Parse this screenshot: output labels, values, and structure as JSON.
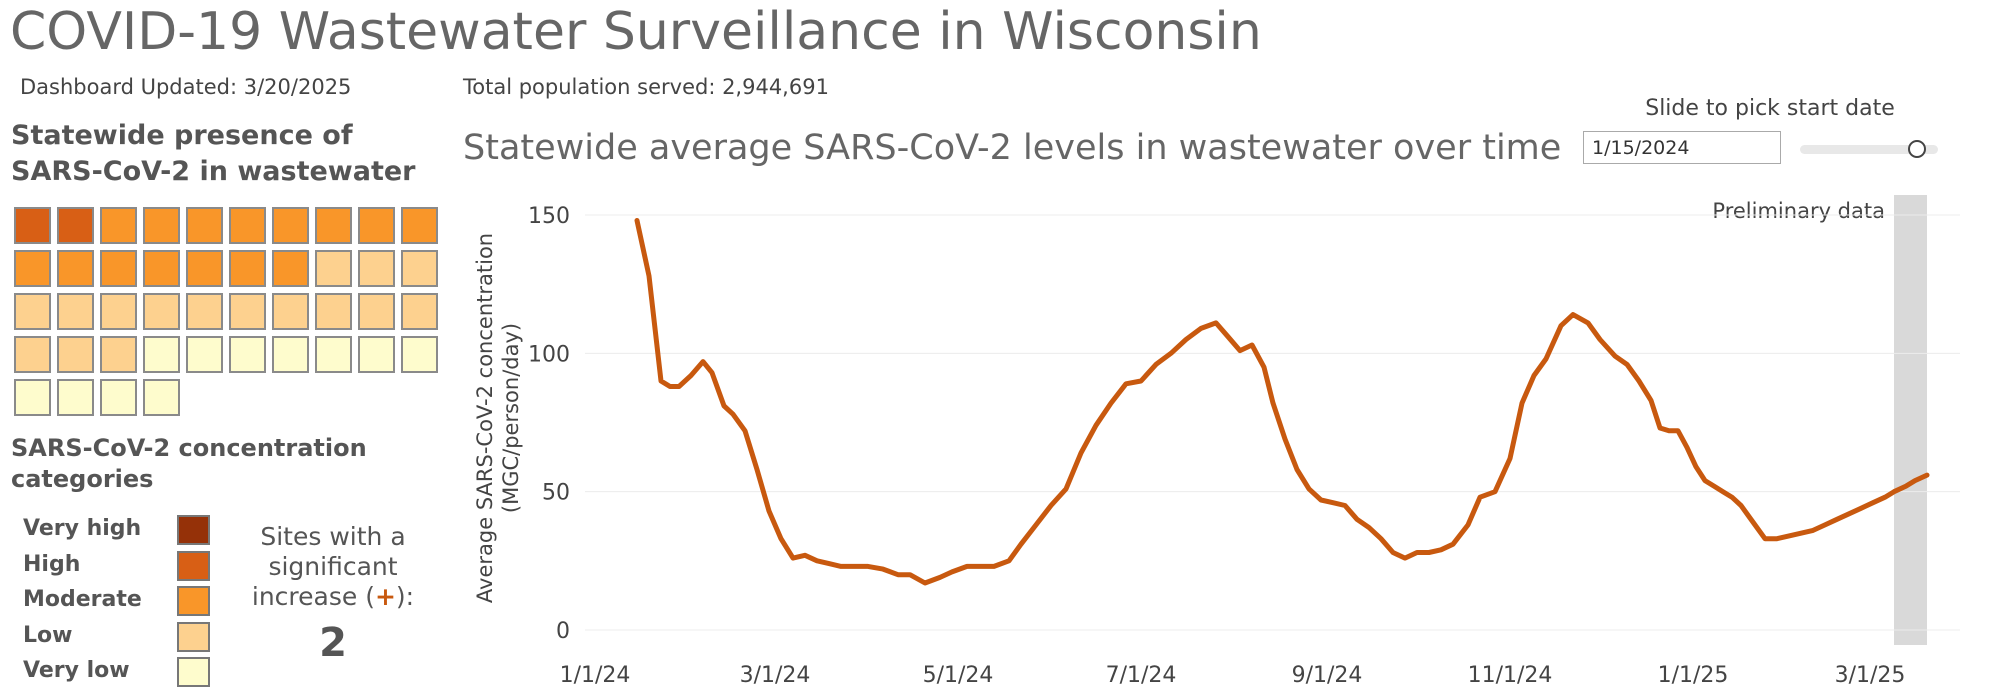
{
  "header": {
    "title": "COVID-19 Wastewater Surveillance in Wisconsin",
    "updated": "Dashboard Updated: 3/20/2025",
    "population": "Total population served: 2,944,691"
  },
  "presence": {
    "title": "Statewide presence of SARS-CoV-2 in wastewater",
    "sites": [
      "High",
      "High",
      "Moderate",
      "Moderate",
      "Moderate",
      "Moderate",
      "Moderate",
      "Moderate",
      "Moderate",
      "Moderate",
      "Moderate",
      "Moderate",
      "Moderate",
      "Moderate",
      "Moderate",
      "Moderate",
      "Moderate",
      "Low",
      "Low",
      "Low",
      "Low",
      "Low",
      "Low",
      "Low",
      "Low",
      "Low",
      "Low",
      "Low",
      "Low",
      "Low",
      "Low",
      "Low",
      "Low",
      "Very low",
      "Very low",
      "Very low",
      "Very low",
      "Very low",
      "Very low",
      "Very low",
      "Very low",
      "Very low",
      "Very low",
      "Very low"
    ]
  },
  "categories": {
    "title": "SARS-CoV-2 concentration categories",
    "items": [
      {
        "label": "Very high",
        "color": "#953108"
      },
      {
        "label": "High",
        "color": "#d85f15"
      },
      {
        "label": "Moderate",
        "color": "#f99629"
      },
      {
        "label": "Low",
        "color": "#fdd18f"
      },
      {
        "label": "Very low",
        "color": "#fefccd"
      }
    ]
  },
  "significant": {
    "line1": "Sites with a",
    "line2": "significant",
    "line3_pre": "increase (",
    "plus": "+",
    "line3_post": "):",
    "count": "2"
  },
  "controls": {
    "slider_label": "Slide to pick start date",
    "start_date": "1/15/2024",
    "slider_position": 0.85
  },
  "chart_data": {
    "type": "line",
    "title": "Statewide average SARS-CoV-2 levels in wastewater over time",
    "ylabel_line1": "Average SARS-CoV-2 concentration",
    "ylabel_line2": "(MGC/person/day)",
    "xlabel": "",
    "ylim": [
      0,
      150
    ],
    "yticks": [
      0,
      50,
      100,
      150
    ],
    "xlim": [
      "2024-01-01",
      "2025-03-31"
    ],
    "xticks": [
      {
        "date": "2024-01-01",
        "label": "1/1/24"
      },
      {
        "date": "2024-03-01",
        "label": "3/1/24"
      },
      {
        "date": "2024-05-01",
        "label": "5/1/24"
      },
      {
        "date": "2024-07-01",
        "label": "7/1/24"
      },
      {
        "date": "2024-09-01",
        "label": "9/1/24"
      },
      {
        "date": "2024-11-01",
        "label": "11/1/24"
      },
      {
        "date": "2025-01-01",
        "label": "1/1/25"
      },
      {
        "date": "2025-03-01",
        "label": "3/1/25"
      }
    ],
    "grid": true,
    "line_color": "#c8590f",
    "preliminary": {
      "label": "Preliminary data",
      "start": "2025-03-09",
      "end": "2025-03-20",
      "color": "#d9d9d9"
    },
    "series": [
      {
        "x": [
          "2024-01-15",
          "2024-01-19",
          "2024-01-23",
          "2024-01-26",
          "2024-01-29",
          "2024-02-02",
          "2024-02-06",
          "2024-02-09",
          "2024-02-13",
          "2024-02-16",
          "2024-02-20",
          "2024-02-24",
          "2024-02-28",
          "2024-03-03",
          "2024-03-07",
          "2024-03-11",
          "2024-03-15",
          "2024-03-19",
          "2024-03-23",
          "2024-03-27",
          "2024-04-01",
          "2024-04-06",
          "2024-04-11",
          "2024-04-15",
          "2024-04-20",
          "2024-04-25",
          "2024-04-29",
          "2024-05-04",
          "2024-05-09",
          "2024-05-13",
          "2024-05-18",
          "2024-05-22",
          "2024-05-27",
          "2024-06-01",
          "2024-06-06",
          "2024-06-11",
          "2024-06-16",
          "2024-06-21",
          "2024-06-26",
          "2024-07-01",
          "2024-07-06",
          "2024-07-11",
          "2024-07-16",
          "2024-07-21",
          "2024-07-26",
          "2024-07-30",
          "2024-08-03",
          "2024-08-07",
          "2024-08-11",
          "2024-08-14",
          "2024-08-18",
          "2024-08-22",
          "2024-08-26",
          "2024-08-30",
          "2024-09-03",
          "2024-09-07",
          "2024-09-11",
          "2024-09-15",
          "2024-09-19",
          "2024-09-23",
          "2024-09-27",
          "2024-10-01",
          "2024-10-05",
          "2024-10-09",
          "2024-10-13",
          "2024-10-18",
          "2024-10-22",
          "2024-10-27",
          "2024-11-01",
          "2024-11-05",
          "2024-11-09",
          "2024-11-13",
          "2024-11-18",
          "2024-11-22",
          "2024-11-27",
          "2024-12-01",
          "2024-12-06",
          "2024-12-10",
          "2024-12-14",
          "2024-12-18",
          "2024-12-21",
          "2024-12-24",
          "2024-12-27",
          "2024-12-30",
          "2025-01-02",
          "2025-01-05",
          "2025-01-08",
          "2025-01-11",
          "2025-01-14",
          "2025-01-17",
          "2025-01-21",
          "2025-01-25",
          "2025-01-29",
          "2025-02-02",
          "2025-02-06",
          "2025-02-10",
          "2025-02-14",
          "2025-02-18",
          "2025-02-22",
          "2025-02-26",
          "2025-03-02",
          "2025-03-06",
          "2025-03-09",
          "2025-03-13",
          "2025-03-16",
          "2025-03-20"
        ],
        "y": [
          148,
          128,
          90,
          88,
          88,
          92,
          97,
          93,
          81,
          78,
          72,
          58,
          43,
          33,
          26,
          27,
          25,
          24,
          23,
          23,
          23,
          22,
          20,
          20,
          17,
          19,
          21,
          23,
          23,
          23,
          25,
          31,
          38,
          45,
          51,
          64,
          74,
          82,
          89,
          90,
          96,
          100,
          105,
          109,
          111,
          106,
          101,
          103,
          95,
          82,
          69,
          58,
          51,
          47,
          46,
          45,
          40,
          37,
          33,
          28,
          26,
          28,
          28,
          29,
          31,
          38,
          48,
          50,
          62,
          82,
          92,
          98,
          110,
          114,
          111,
          105,
          99,
          96,
          90,
          83,
          73,
          72,
          72,
          66,
          59,
          54,
          52,
          50,
          48,
          45,
          39,
          33,
          33,
          34,
          35,
          36,
          38,
          40,
          42,
          44,
          46,
          48,
          50,
          52,
          54,
          56
        ]
      }
    ]
  }
}
